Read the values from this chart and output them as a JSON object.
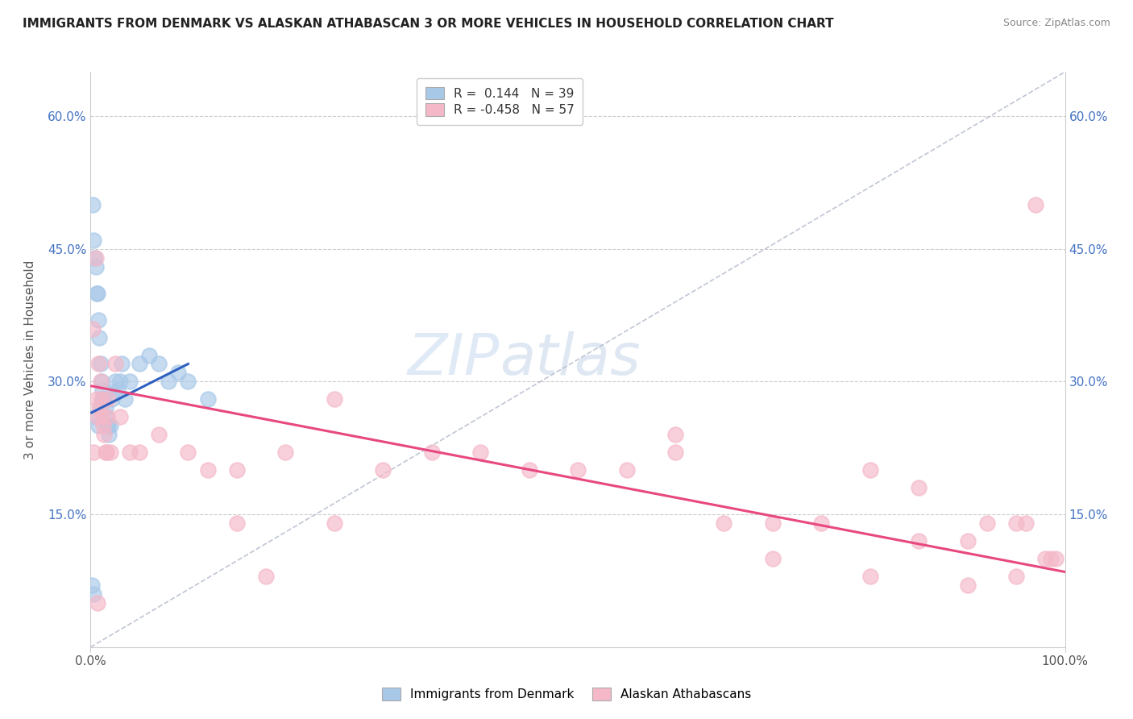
{
  "title": "IMMIGRANTS FROM DENMARK VS ALASKAN ATHABASCAN 3 OR MORE VEHICLES IN HOUSEHOLD CORRELATION CHART",
  "source": "Source: ZipAtlas.com",
  "ylabel": "3 or more Vehicles in Household",
  "xlim": [
    0.0,
    1.0
  ],
  "ylim": [
    0.0,
    0.65
  ],
  "yticks": [
    0.15,
    0.3,
    0.45,
    0.6
  ],
  "ytick_labels": [
    "15.0%",
    "30.0%",
    "45.0%",
    "60.0%"
  ],
  "blue_color": "#a8c8e8",
  "pink_color": "#f4b8c8",
  "blue_line_color": "#3060c0",
  "pink_line_color": "#e84880",
  "gray_dashed_color": "#b0b8c8",
  "blue_scatter_x": [
    0.001,
    0.002,
    0.003,
    0.004,
    0.005,
    0.006,
    0.007,
    0.008,
    0.009,
    0.01,
    0.011,
    0.012,
    0.013,
    0.014,
    0.015,
    0.016,
    0.017,
    0.018,
    0.019,
    0.02,
    0.022,
    0.025,
    0.028,
    0.03,
    0.032,
    0.035,
    0.04,
    0.05,
    0.06,
    0.07,
    0.08,
    0.09,
    0.1,
    0.12,
    0.01,
    0.005,
    0.008,
    0.012,
    0.003
  ],
  "blue_scatter_y": [
    0.07,
    0.5,
    0.46,
    0.44,
    0.43,
    0.4,
    0.4,
    0.37,
    0.35,
    0.32,
    0.3,
    0.29,
    0.28,
    0.28,
    0.27,
    0.26,
    0.25,
    0.25,
    0.24,
    0.25,
    0.28,
    0.3,
    0.29,
    0.3,
    0.32,
    0.28,
    0.3,
    0.32,
    0.33,
    0.32,
    0.3,
    0.31,
    0.3,
    0.28,
    0.27,
    0.26,
    0.25,
    0.28,
    0.06
  ],
  "blue_line_x": [
    0.001,
    0.1
  ],
  "blue_line_y": [
    0.265,
    0.32
  ],
  "pink_scatter_x": [
    0.002,
    0.003,
    0.005,
    0.006,
    0.007,
    0.008,
    0.009,
    0.01,
    0.011,
    0.012,
    0.013,
    0.014,
    0.015,
    0.016,
    0.017,
    0.018,
    0.02,
    0.025,
    0.03,
    0.04,
    0.05,
    0.07,
    0.1,
    0.12,
    0.15,
    0.18,
    0.2,
    0.25,
    0.3,
    0.35,
    0.4,
    0.45,
    0.5,
    0.55,
    0.6,
    0.65,
    0.7,
    0.75,
    0.8,
    0.85,
    0.9,
    0.92,
    0.95,
    0.96,
    0.97,
    0.98,
    0.985,
    0.99,
    0.007,
    0.15,
    0.25,
    0.6,
    0.7,
    0.8,
    0.85,
    0.95,
    0.9
  ],
  "pink_scatter_y": [
    0.36,
    0.22,
    0.44,
    0.28,
    0.26,
    0.32,
    0.27,
    0.3,
    0.28,
    0.26,
    0.25,
    0.24,
    0.22,
    0.22,
    0.26,
    0.28,
    0.22,
    0.32,
    0.26,
    0.22,
    0.22,
    0.24,
    0.22,
    0.2,
    0.2,
    0.08,
    0.22,
    0.28,
    0.2,
    0.22,
    0.22,
    0.2,
    0.2,
    0.2,
    0.24,
    0.14,
    0.14,
    0.14,
    0.2,
    0.18,
    0.12,
    0.14,
    0.14,
    0.14,
    0.5,
    0.1,
    0.1,
    0.1,
    0.05,
    0.14,
    0.14,
    0.22,
    0.1,
    0.08,
    0.12,
    0.08,
    0.07
  ],
  "pink_line_x": [
    0.001,
    1.0
  ],
  "pink_line_y": [
    0.295,
    0.085
  ]
}
